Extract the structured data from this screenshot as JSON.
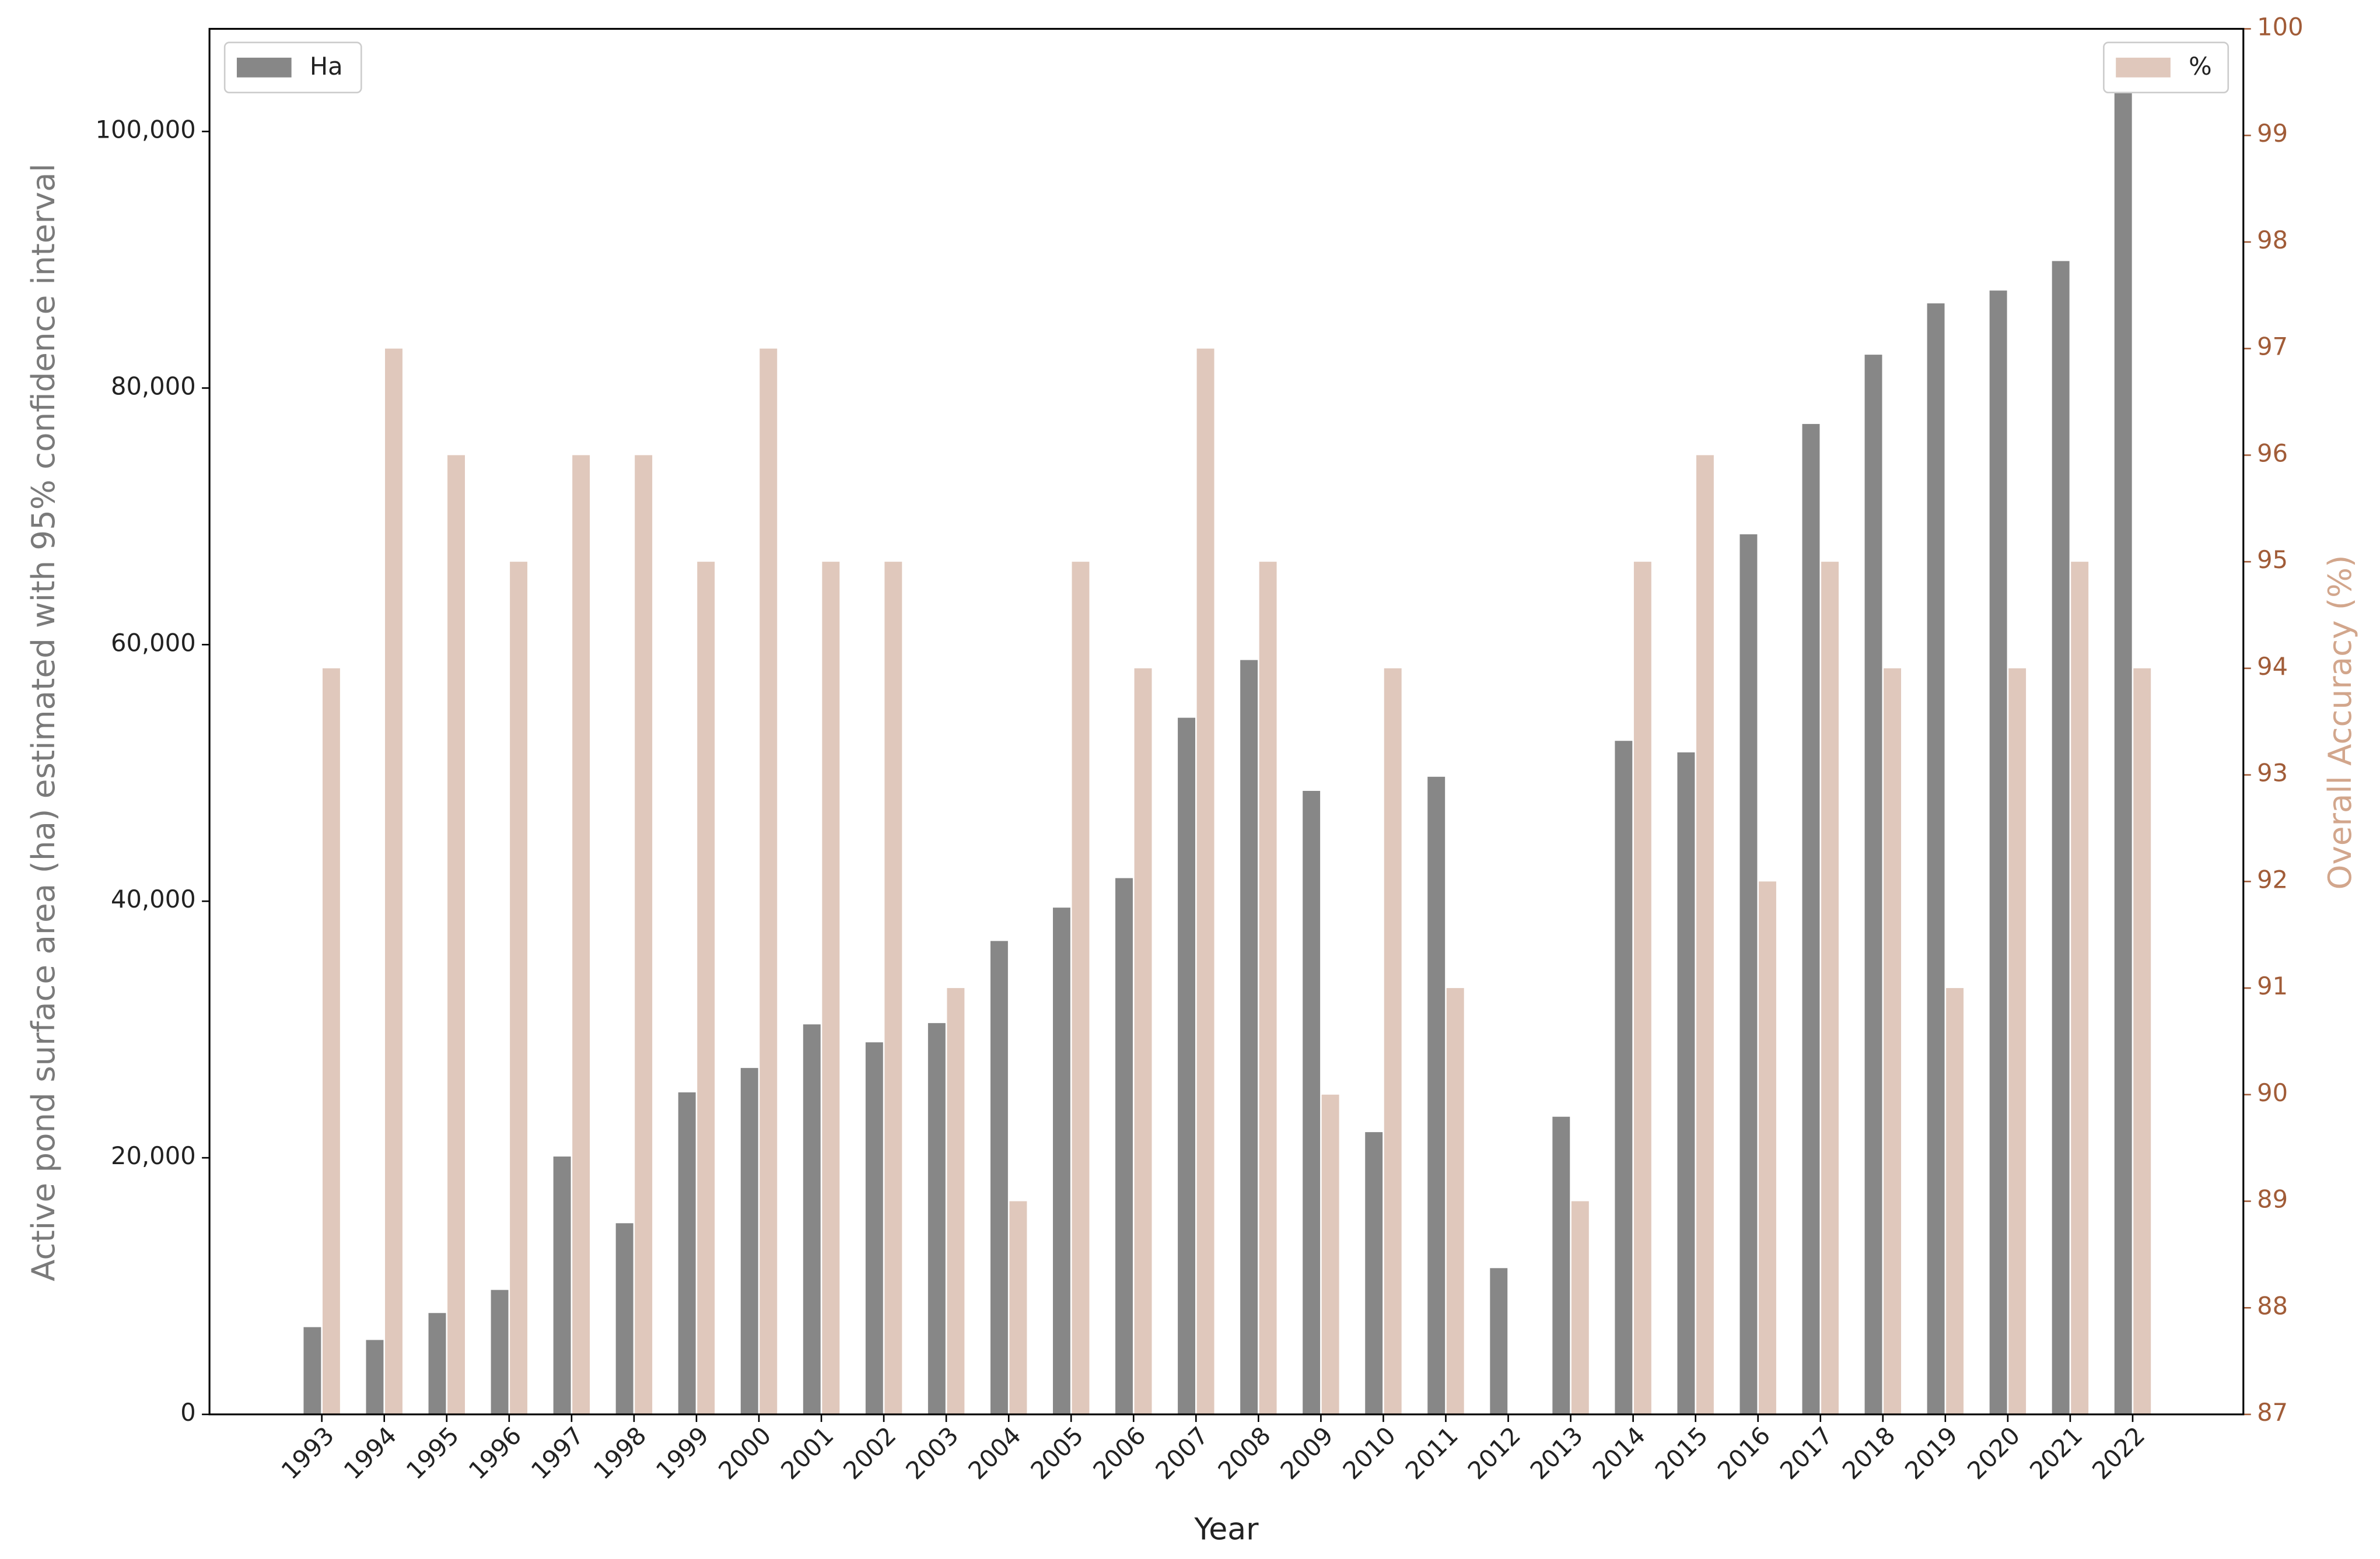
{
  "chart_data": {
    "type": "bar",
    "x_label": "Year",
    "y_label": "Active pond surface area (ha) estimated with 95% confidence interval",
    "y2_label": "Overall Accuracy (%)",
    "categories": [
      "1993",
      "1994",
      "1995",
      "1996",
      "1997",
      "1998",
      "1999",
      "2000",
      "2001",
      "2002",
      "2003",
      "2004",
      "2005",
      "2006",
      "2007",
      "2008",
      "2009",
      "2010",
      "2011",
      "2012",
      "2013",
      "2014",
      "2015",
      "2016",
      "2017",
      "2018",
      "2019",
      "2020",
      "2021",
      "2022"
    ],
    "series": [
      {
        "name": "Ha",
        "color": "#878787",
        "axis": "y",
        "values": [
          6800,
          5800,
          7900,
          9700,
          20100,
          14900,
          25100,
          27000,
          30400,
          29000,
          30500,
          36900,
          39500,
          41800,
          54300,
          58800,
          48600,
          22000,
          49700,
          11400,
          23200,
          52500,
          51600,
          68600,
          77200,
          82600,
          86600,
          87600,
          89900,
          103700
        ]
      },
      {
        "name": "%",
        "color": "#e0c8bc",
        "axis": "y2",
        "values": [
          94,
          97,
          96,
          95,
          96,
          96,
          95,
          97,
          95,
          95,
          91,
          89,
          95,
          94,
          97,
          95,
          90,
          94,
          91,
          null,
          89,
          95,
          96,
          92,
          95,
          94,
          91,
          94,
          95,
          94
        ]
      }
    ],
    "ylim": [
      0,
      108000
    ],
    "yticks": [
      0,
      {
        "value": 20000,
        "label": "20,000"
      },
      {
        "value": 40000,
        "label": "40,000"
      },
      {
        "value": 60000,
        "label": "60,000"
      },
      {
        "value": 80000,
        "label": "80,000"
      },
      {
        "value": 100000,
        "label": "100,000"
      }
    ],
    "y2lim": [
      87,
      100
    ],
    "y2ticks": [
      87,
      88,
      89,
      90,
      91,
      92,
      93,
      94,
      95,
      96,
      97,
      98,
      99,
      100
    ],
    "y2_color": "#a15c38",
    "y2_label_color": "#d2a68c",
    "y_label_color": "#7a7a7a",
    "grid": false
  }
}
